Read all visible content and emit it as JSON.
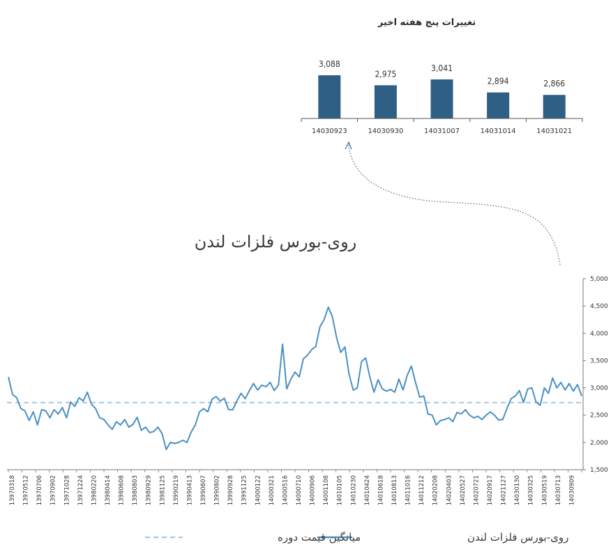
{
  "chart_data": [
    {
      "type": "bar",
      "title": "تغییرات پنج هفته اخیر",
      "categories": [
        "14030923",
        "14030930",
        "14031007",
        "14031014",
        "14031021"
      ],
      "values": [
        3088,
        2975,
        3041,
        2894,
        2866
      ],
      "value_labels": [
        "3,088",
        "2,975",
        "3,041",
        "2,894",
        "2,866"
      ],
      "ylim": [
        2600,
        3150
      ],
      "color": "#2f5f84",
      "grid": false
    },
    {
      "type": "line",
      "title": "روی-بورس فلزات لندن",
      "ylim": [
        1500,
        5000
      ],
      "yticks": [
        1500,
        2000,
        2500,
        3000,
        3500,
        4000,
        4500,
        5000
      ],
      "ytick_labels": [
        "1,500",
        "2,000",
        "2,500",
        "3,000",
        "3,500",
        "4,000",
        "4,500",
        "5,000"
      ],
      "x_tick_labels": [
        "13970318",
        "13970512",
        "13970706",
        "13970902",
        "13971028",
        "13971224",
        "13980220",
        "13980414",
        "13980608",
        "13980803",
        "13980929",
        "13981125",
        "13990219",
        "13990413",
        "13990607",
        "13990802",
        "13990928",
        "13991125",
        "14000122",
        "14000321",
        "14000516",
        "14000710",
        "14000906",
        "14001108",
        "14010105",
        "14010230",
        "14010424",
        "14010618",
        "14010813",
        "14011016",
        "14011212",
        "14020208",
        "14020403",
        "14020527",
        "14020721",
        "14020917",
        "14021127",
        "14030130",
        "14030325",
        "14030519",
        "14030713",
        "14030909"
      ],
      "series": [
        {
          "name": "روی-بورس فلزات لندن",
          "style": "solid",
          "color": "#4a90c4",
          "values": [
            3200,
            2880,
            2820,
            2620,
            2580,
            2400,
            2560,
            2320,
            2600,
            2580,
            2450,
            2600,
            2520,
            2640,
            2450,
            2740,
            2660,
            2820,
            2760,
            2920,
            2700,
            2620,
            2450,
            2420,
            2320,
            2240,
            2380,
            2320,
            2420,
            2280,
            2330,
            2460,
            2220,
            2280,
            2180,
            2200,
            2280,
            2160,
            1870,
            2000,
            1980,
            2000,
            2040,
            2000,
            2190,
            2320,
            2560,
            2620,
            2560,
            2790,
            2840,
            2760,
            2810,
            2600,
            2600,
            2760,
            2900,
            2800,
            2950,
            3080,
            2960,
            3050,
            3020,
            3100,
            2950,
            3050,
            3800,
            2980,
            3160,
            3290,
            3200,
            3530,
            3600,
            3700,
            3760,
            4120,
            4250,
            4480,
            4300,
            3920,
            3650,
            3750,
            3250,
            2960,
            3000,
            3480,
            3550,
            3200,
            2920,
            3150,
            2980,
            2940,
            2970,
            2920,
            3160,
            2960,
            3230,
            3400,
            3100,
            2830,
            2850,
            2520,
            2500,
            2320,
            2400,
            2420,
            2450,
            2380,
            2550,
            2520,
            2600,
            2500,
            2450,
            2480,
            2420,
            2500,
            2560,
            2500,
            2410,
            2420,
            2620,
            2800,
            2850,
            2950,
            2730,
            2980,
            3000,
            2740,
            2680,
            3000,
            2900,
            3180,
            3000,
            3100,
            2960,
            3080,
            2940,
            3060,
            2850
          ]
        },
        {
          "name": "میانگین قیمت دوره",
          "style": "dashed",
          "color": "#9fc3df",
          "values": [
            2730
          ]
        }
      ],
      "legend": [
        "روی-بورس فلزات لندن",
        "میانگین قیمت دوره"
      ],
      "legend_position": "bottom",
      "grid": false
    }
  ]
}
